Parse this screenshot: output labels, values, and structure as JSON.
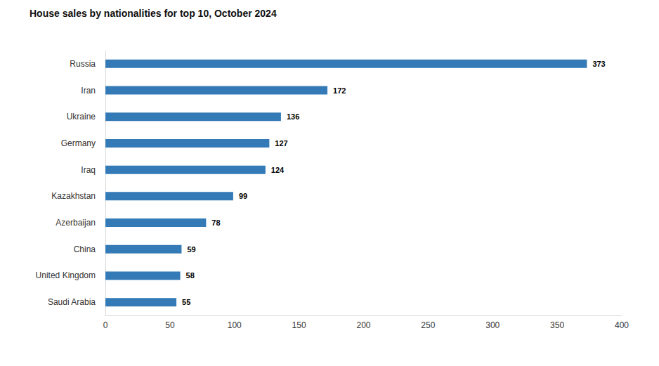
{
  "chart_data": {
    "type": "bar",
    "title": "House sales by nationalities for top 10, October 2024",
    "orientation": "horizontal",
    "categories": [
      "Russia",
      "Iran",
      "Ukraine",
      "Germany",
      "Iraq",
      "Kazakhstan",
      "Azerbaijan",
      "China",
      "United Kingdom",
      "Saudi Arabia"
    ],
    "values": [
      373,
      172,
      136,
      127,
      124,
      99,
      78,
      59,
      58,
      55
    ],
    "color": "#337ab7",
    "xlim": [
      0,
      400
    ],
    "xticks": [
      0,
      50,
      100,
      150,
      200,
      250,
      300,
      350,
      400
    ],
    "grid": false,
    "data_labels": true
  }
}
